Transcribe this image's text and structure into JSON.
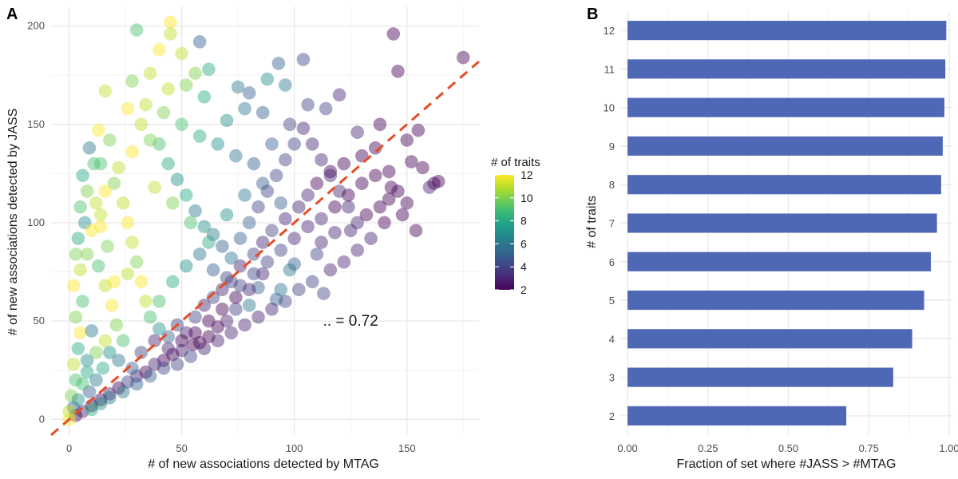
{
  "chart_data": [
    {
      "panel": "A",
      "type": "scatter",
      "xlabel": "# of new associations detected by MTAG",
      "ylabel": "# of new associations detected by JASS",
      "xlim": [
        -8,
        182
      ],
      "ylim": [
        -8,
        210
      ],
      "xticks": [
        0,
        50,
        100,
        150
      ],
      "yticks": [
        0,
        50,
        100,
        150,
        200
      ],
      "grid": true,
      "annotation": ".. = 0.72",
      "annotation_pos": [
        125,
        50
      ],
      "reference_line": {
        "type": "diagonal",
        "slope": 1,
        "intercept": 0,
        "color": "#e64b26"
      },
      "color_legend": {
        "title": "# of traits",
        "ticks": [
          2,
          4,
          6,
          8,
          10,
          12
        ],
        "range": [
          2,
          12
        ],
        "colors": [
          "#440154",
          "#482878",
          "#3e4a89",
          "#31688e",
          "#26828e",
          "#1f9e89",
          "#35b779",
          "#6ece58",
          "#b5de2b",
          "#fde725"
        ]
      },
      "points": [
        [
          45,
          202,
          12
        ],
        [
          45,
          196,
          11
        ],
        [
          144,
          196,
          2
        ],
        [
          175,
          184,
          2
        ],
        [
          146,
          177,
          2
        ],
        [
          104,
          183,
          4
        ],
        [
          58,
          192,
          5
        ],
        [
          30,
          198,
          9
        ],
        [
          50,
          186,
          11
        ],
        [
          56,
          176,
          10
        ],
        [
          40,
          188,
          12
        ],
        [
          16,
          167,
          11
        ],
        [
          13,
          147,
          12
        ],
        [
          28,
          172,
          10
        ],
        [
          36,
          176,
          11
        ],
        [
          62,
          178,
          8
        ],
        [
          75,
          169,
          6
        ],
        [
          80,
          166,
          5
        ],
        [
          88,
          173,
          7
        ],
        [
          93,
          181,
          5
        ],
        [
          96,
          170,
          6
        ],
        [
          114,
          158,
          4
        ],
        [
          120,
          165,
          3
        ],
        [
          128,
          146,
          3
        ],
        [
          138,
          150,
          2
        ],
        [
          150,
          142,
          2
        ],
        [
          155,
          147,
          2
        ],
        [
          152,
          131,
          2
        ],
        [
          157,
          128,
          2
        ],
        [
          162,
          120,
          2
        ],
        [
          160,
          118,
          3
        ],
        [
          164,
          121,
          2
        ],
        [
          143,
          118,
          2
        ],
        [
          138,
          108,
          2
        ],
        [
          132,
          104,
          2
        ],
        [
          125,
          96,
          3
        ],
        [
          118,
          95,
          3
        ],
        [
          112,
          90,
          3
        ],
        [
          110,
          84,
          4
        ],
        [
          113,
          64,
          4
        ],
        [
          100,
          79,
          5
        ],
        [
          98,
          76,
          6
        ],
        [
          94,
          66,
          6
        ],
        [
          86,
          74,
          3
        ],
        [
          84,
          67,
          5
        ],
        [
          92,
          61,
          5
        ],
        [
          80,
          58,
          6
        ],
        [
          74,
          56,
          4
        ],
        [
          70,
          50,
          3
        ],
        [
          66,
          47,
          2
        ],
        [
          62,
          42,
          2
        ],
        [
          58,
          39,
          2
        ],
        [
          55,
          38,
          2
        ],
        [
          50,
          35,
          3
        ],
        [
          46,
          33,
          2
        ],
        [
          42,
          30,
          2
        ],
        [
          38,
          28,
          3
        ],
        [
          34,
          24,
          2
        ],
        [
          30,
          22,
          3
        ],
        [
          26,
          19,
          4
        ],
        [
          22,
          16,
          2
        ],
        [
          18,
          13,
          3
        ],
        [
          14,
          10,
          2
        ],
        [
          10,
          7,
          2
        ],
        [
          6,
          4,
          3
        ],
        [
          3,
          2,
          2
        ],
        [
          2,
          6,
          5
        ],
        [
          0,
          0,
          12
        ],
        [
          0,
          4,
          11
        ],
        [
          1,
          12,
          10
        ],
        [
          3,
          20,
          9
        ],
        [
          2,
          28,
          11
        ],
        [
          4,
          36,
          8
        ],
        [
          5,
          44,
          12
        ],
        [
          3,
          52,
          10
        ],
        [
          6,
          60,
          9
        ],
        [
          2,
          68,
          12
        ],
        [
          5,
          76,
          11
        ],
        [
          3,
          84,
          10
        ],
        [
          4,
          92,
          8
        ],
        [
          7,
          100,
          7
        ],
        [
          5,
          108,
          9
        ],
        [
          8,
          116,
          10
        ],
        [
          6,
          124,
          8
        ],
        [
          11,
          130,
          9
        ],
        [
          9,
          138,
          6
        ],
        [
          12,
          110,
          11
        ],
        [
          14,
          98,
          12
        ],
        [
          17,
          88,
          10
        ],
        [
          13,
          78,
          9
        ],
        [
          16,
          68,
          11
        ],
        [
          19,
          58,
          12
        ],
        [
          21,
          48,
          10
        ],
        [
          24,
          40,
          9
        ],
        [
          18,
          34,
          7
        ],
        [
          15,
          26,
          8
        ],
        [
          12,
          20,
          6
        ],
        [
          9,
          14,
          5
        ],
        [
          8,
          30,
          7
        ],
        [
          10,
          45,
          6
        ],
        [
          20,
          120,
          10
        ],
        [
          24,
          110,
          11
        ],
        [
          26,
          100,
          12
        ],
        [
          28,
          90,
          11
        ],
        [
          30,
          80,
          10
        ],
        [
          32,
          70,
          12
        ],
        [
          34,
          60,
          11
        ],
        [
          36,
          52,
          9
        ],
        [
          40,
          46,
          7
        ],
        [
          44,
          42,
          5
        ],
        [
          48,
          48,
          4
        ],
        [
          52,
          44,
          3
        ],
        [
          56,
          52,
          4
        ],
        [
          60,
          58,
          3
        ],
        [
          64,
          62,
          4
        ],
        [
          68,
          66,
          3
        ],
        [
          72,
          70,
          4
        ],
        [
          76,
          78,
          3
        ],
        [
          82,
          84,
          4
        ],
        [
          86,
          90,
          3
        ],
        [
          90,
          96,
          4
        ],
        [
          96,
          102,
          3
        ],
        [
          102,
          108,
          3
        ],
        [
          106,
          114,
          3
        ],
        [
          110,
          120,
          2
        ],
        [
          116,
          126,
          2
        ],
        [
          122,
          130,
          2
        ],
        [
          130,
          134,
          2
        ],
        [
          136,
          138,
          2
        ],
        [
          142,
          126,
          2
        ],
        [
          146,
          116,
          2
        ],
        [
          150,
          110,
          2
        ],
        [
          140,
          100,
          2
        ],
        [
          134,
          92,
          3
        ],
        [
          128,
          86,
          3
        ],
        [
          122,
          80,
          3
        ],
        [
          116,
          76,
          3
        ],
        [
          108,
          70,
          4
        ],
        [
          102,
          66,
          4
        ],
        [
          96,
          60,
          4
        ],
        [
          90,
          56,
          3
        ],
        [
          84,
          52,
          3
        ],
        [
          78,
          48,
          3
        ],
        [
          72,
          44,
          3
        ],
        [
          66,
          40,
          3
        ],
        [
          60,
          36,
          3
        ],
        [
          54,
          32,
          4
        ],
        [
          48,
          28,
          4
        ],
        [
          42,
          26,
          4
        ],
        [
          36,
          22,
          5
        ],
        [
          30,
          18,
          5
        ],
        [
          24,
          14,
          6
        ],
        [
          18,
          11,
          6
        ],
        [
          14,
          8,
          7
        ],
        [
          10,
          5,
          8
        ],
        [
          40,
          140,
          9
        ],
        [
          44,
          130,
          8
        ],
        [
          48,
          122,
          7
        ],
        [
          52,
          114,
          8
        ],
        [
          56,
          106,
          6
        ],
        [
          60,
          98,
          7
        ],
        [
          64,
          94,
          6
        ],
        [
          68,
          88,
          5
        ],
        [
          72,
          82,
          6
        ],
        [
          76,
          92,
          5
        ],
        [
          80,
          100,
          5
        ],
        [
          84,
          108,
          4
        ],
        [
          88,
          116,
          4
        ],
        [
          92,
          124,
          4
        ],
        [
          96,
          132,
          4
        ],
        [
          100,
          140,
          4
        ],
        [
          104,
          148,
          3
        ],
        [
          108,
          140,
          3
        ],
        [
          112,
          132,
          3
        ],
        [
          116,
          124,
          3
        ],
        [
          120,
          116,
          3
        ],
        [
          124,
          108,
          3
        ],
        [
          128,
          100,
          3
        ],
        [
          32,
          150,
          11
        ],
        [
          36,
          142,
          10
        ],
        [
          28,
          136,
          12
        ],
        [
          22,
          128,
          11
        ],
        [
          18,
          142,
          10
        ],
        [
          14,
          130,
          9
        ],
        [
          26,
          158,
          12
        ],
        [
          34,
          160,
          11
        ],
        [
          42,
          156,
          10
        ],
        [
          50,
          150,
          9
        ],
        [
          58,
          144,
          8
        ],
        [
          66,
          140,
          7
        ],
        [
          74,
          134,
          6
        ],
        [
          82,
          130,
          5
        ],
        [
          90,
          140,
          5
        ],
        [
          98,
          150,
          4
        ],
        [
          106,
          160,
          4
        ],
        [
          70,
          152,
          7
        ],
        [
          78,
          158,
          6
        ],
        [
          86,
          156,
          5
        ],
        [
          60,
          164,
          8
        ],
        [
          52,
          170,
          10
        ],
        [
          44,
          168,
          11
        ],
        [
          38,
          118,
          11
        ],
        [
          46,
          110,
          10
        ],
        [
          54,
          100,
          9
        ],
        [
          62,
          90,
          8
        ],
        [
          70,
          104,
          7
        ],
        [
          78,
          114,
          6
        ],
        [
          86,
          120,
          5
        ],
        [
          94,
          110,
          5
        ],
        [
          20,
          70,
          12
        ],
        [
          26,
          74,
          11
        ],
        [
          8,
          84,
          10
        ],
        [
          10,
          96,
          12
        ],
        [
          14,
          104,
          11
        ],
        [
          16,
          116,
          12
        ],
        [
          6,
          18,
          9
        ],
        [
          4,
          10,
          7
        ],
        [
          8,
          24,
          8
        ],
        [
          12,
          34,
          10
        ],
        [
          16,
          40,
          11
        ],
        [
          22,
          30,
          6
        ],
        [
          28,
          26,
          5
        ],
        [
          32,
          34,
          4
        ],
        [
          38,
          40,
          3
        ],
        [
          44,
          36,
          3
        ],
        [
          50,
          40,
          2
        ],
        [
          56,
          44,
          2
        ],
        [
          62,
          50,
          2
        ],
        [
          68,
          56,
          2
        ],
        [
          74,
          62,
          2
        ],
        [
          80,
          66,
          3
        ],
        [
          40,
          60,
          9
        ],
        [
          46,
          70,
          8
        ],
        [
          52,
          78,
          7
        ],
        [
          58,
          84,
          6
        ],
        [
          64,
          76,
          5
        ],
        [
          70,
          72,
          4
        ],
        [
          76,
          68,
          4
        ],
        [
          82,
          74,
          4
        ],
        [
          88,
          80,
          4
        ],
        [
          94,
          86,
          4
        ],
        [
          100,
          92,
          3
        ],
        [
          106,
          98,
          3
        ],
        [
          112,
          102,
          3
        ],
        [
          118,
          108,
          2
        ],
        [
          124,
          114,
          2
        ],
        [
          130,
          120,
          2
        ],
        [
          136,
          124,
          2
        ],
        [
          142,
          112,
          2
        ],
        [
          148,
          104,
          2
        ],
        [
          154,
          96,
          2
        ]
      ]
    },
    {
      "panel": "B",
      "type": "bar",
      "orientation": "horizontal",
      "categories": [
        "2",
        "3",
        "4",
        "5",
        "6",
        "7",
        "8",
        "9",
        "10",
        "11",
        "12"
      ],
      "values": [
        0.68,
        0.826,
        0.885,
        0.922,
        0.943,
        0.962,
        0.975,
        0.98,
        0.985,
        0.988,
        0.991
      ],
      "xlabel": "Fraction of set where #JASS > #MTAG",
      "ylabel": "# of traits",
      "xlim": [
        -0.02,
        1.01
      ],
      "xticks": [
        "0.00",
        "0.25",
        "0.50",
        "0.75",
        "1.00"
      ],
      "bar_color": "#4f68b5",
      "grid": true
    }
  ],
  "panel_labels": [
    "A",
    "B"
  ]
}
